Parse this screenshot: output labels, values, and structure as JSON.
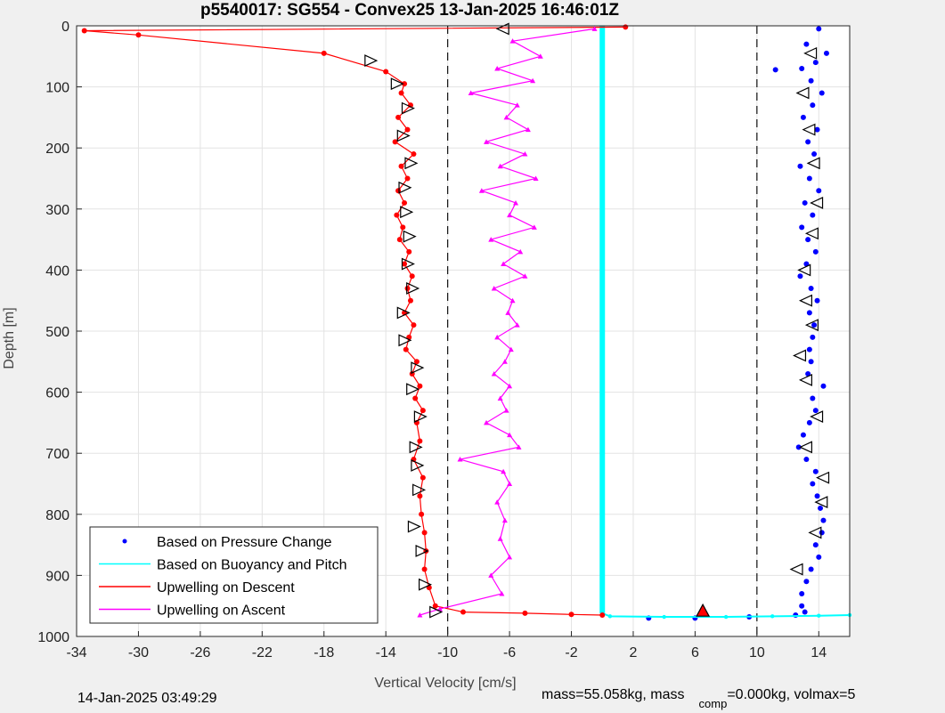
{
  "chart_data": {
    "type": "scatter",
    "title": "p5540017: SG554 - Convex25 13-Jan-2025 16:46:01Z",
    "xlabel": "Vertical Velocity [cm/s]",
    "ylabel": "Depth [m]",
    "xlim": [
      -34,
      16
    ],
    "ylim": [
      0,
      1000
    ],
    "y_reversed": true,
    "grid": true,
    "x_ticks": [
      "-34",
      "-30",
      "-26",
      "-22",
      "-18",
      "-14",
      "-10",
      "-6",
      "-2",
      "2",
      "6",
      "10",
      "14"
    ],
    "x_tick_values": [
      -34,
      -30,
      -26,
      -22,
      -18,
      -14,
      -10,
      -6,
      -2,
      2,
      6,
      10,
      14
    ],
    "y_ticks": [
      "0",
      "100",
      "200",
      "300",
      "400",
      "500",
      "600",
      "700",
      "800",
      "900",
      "1000"
    ],
    "y_tick_values": [
      0,
      100,
      200,
      300,
      400,
      500,
      600,
      700,
      800,
      900,
      1000
    ],
    "vlines": [
      -10,
      0,
      10
    ],
    "legend_position": "bottom-left",
    "legend": [
      {
        "label": "Based on Pressure Change",
        "color": "#0000ff",
        "style": "dot"
      },
      {
        "label": "Based on Buoyancy and Pitch",
        "color": "#00ffff",
        "style": "line"
      },
      {
        "label": "Upwelling on Descent",
        "color": "#ff0000",
        "style": "line"
      },
      {
        "label": "Upwelling on Ascent",
        "color": "#ff00ff",
        "style": "line"
      }
    ],
    "series": [
      {
        "name": "Based on Pressure Change",
        "color": "#0000ff",
        "x": [
          14,
          13.2,
          14.5,
          13.8,
          12.9,
          11.2,
          13.5,
          14.2,
          13.6,
          13.0,
          13.9,
          13.3,
          13.7,
          12.8,
          13.4,
          14.0,
          13.1,
          13.6,
          12.9,
          13.3,
          13.8,
          13.2,
          12.8,
          13.5,
          13.9,
          13.4,
          13.7,
          13.6,
          13.4,
          13.5,
          13.3,
          14.3,
          13.6,
          13.8,
          13.4,
          13.0,
          12.7,
          13.2,
          13.8,
          13.6,
          13.9,
          14.1,
          14.3,
          14.2,
          13.8,
          14.0,
          13.5,
          13.2,
          12.9,
          12.9,
          13.1,
          12.5,
          9.5,
          6.0,
          3.0
        ],
        "y": [
          5,
          30,
          45,
          60,
          70,
          72,
          90,
          110,
          130,
          150,
          170,
          190,
          210,
          230,
          250,
          270,
          290,
          310,
          330,
          350,
          370,
          390,
          410,
          430,
          450,
          470,
          490,
          510,
          530,
          550,
          570,
          590,
          610,
          630,
          650,
          670,
          690,
          710,
          730,
          750,
          770,
          790,
          810,
          830,
          850,
          870,
          890,
          910,
          930,
          950,
          960,
          965,
          968,
          970,
          970
        ]
      },
      {
        "name": "Based on Buoyancy and Pitch",
        "color": "#00ffff",
        "x": [
          0,
          0,
          0,
          0.5,
          4,
          8,
          11,
          14,
          16
        ],
        "y": [
          0,
          400,
          962,
          967,
          968,
          968,
          967,
          966,
          965
        ]
      },
      {
        "name": "Upwelling on Descent",
        "color": "#ff0000",
        "x": [
          1.5,
          -33.5,
          -30,
          -18,
          -14,
          -12.8,
          -13.0,
          -12.4,
          -13.2,
          -12.6,
          -13.4,
          -12.2,
          -13.0,
          -12.6,
          -13.2,
          -12.8,
          -13.3,
          -12.9,
          -13.1,
          -12.5,
          -12.8,
          -12.3,
          -12.6,
          -12.4,
          -12.8,
          -12.2,
          -12.5,
          -12.7,
          -12.0,
          -12.3,
          -11.8,
          -12.1,
          -11.6,
          -12.0,
          -11.8,
          -12.2,
          -11.6,
          -11.8,
          -11.7,
          -11.5,
          -11.4,
          -11.5,
          -11.2,
          -10.8,
          -9,
          -5,
          -2,
          0
        ],
        "y": [
          2,
          8,
          15,
          45,
          75,
          95,
          110,
          130,
          150,
          170,
          190,
          210,
          230,
          250,
          270,
          290,
          310,
          330,
          350,
          370,
          390,
          410,
          430,
          450,
          470,
          490,
          510,
          530,
          550,
          570,
          590,
          610,
          630,
          650,
          680,
          710,
          740,
          770,
          800,
          830,
          860,
          890,
          920,
          950,
          960,
          962,
          964,
          965
        ]
      },
      {
        "name": "Upwelling on Ascent",
        "color": "#ff00ff",
        "x": [
          -0.5,
          -5.8,
          -4.0,
          -6.8,
          -4.5,
          -8.5,
          -5.5,
          -6.2,
          -4.8,
          -7.5,
          -5.0,
          -6.6,
          -4.3,
          -7.8,
          -5.6,
          -6.0,
          -4.4,
          -7.2,
          -5.3,
          -6.4,
          -5.0,
          -7.0,
          -5.8,
          -6.1,
          -5.5,
          -6.8,
          -5.9,
          -6.3,
          -7.0,
          -6.0,
          -6.6,
          -6.2,
          -7.5,
          -6.0,
          -5.4,
          -9.2,
          -6.4,
          -6.0,
          -6.8,
          -6.3,
          -6.6,
          -6.0,
          -7.2,
          -6.5,
          -10.5,
          -11.8
        ],
        "y": [
          5,
          25,
          50,
          70,
          90,
          110,
          130,
          150,
          170,
          190,
          210,
          230,
          250,
          270,
          290,
          310,
          330,
          350,
          370,
          390,
          410,
          430,
          450,
          470,
          490,
          510,
          530,
          550,
          570,
          590,
          610,
          630,
          650,
          670,
          690,
          710,
          730,
          750,
          780,
          810,
          840,
          870,
          900,
          930,
          955,
          965
        ]
      }
    ],
    "markers": [
      {
        "type": "triangle-right",
        "x": [
          -15,
          -13.3,
          -12.6,
          -12.9,
          -12.4,
          -12.8,
          -12.7,
          -12.5,
          -12.6,
          -12.3,
          -12.9,
          -12.8,
          -12.0,
          -12.3,
          -11.8,
          -12.1,
          -12.0,
          -11.9,
          -12.2,
          -11.7,
          -11.5,
          -10.8
        ],
        "y": [
          57,
          95,
          135,
          180,
          225,
          265,
          305,
          345,
          390,
          430,
          470,
          515,
          560,
          595,
          640,
          690,
          720,
          760,
          820,
          860,
          915,
          960
        ],
        "color": "#000000"
      },
      {
        "type": "triangle-left",
        "x": [
          -6.4,
          13.5,
          13.0,
          13.4,
          13.7,
          13.9,
          13.6,
          13.1,
          13.2,
          13.6,
          12.8,
          13.2,
          13.9,
          13.2,
          14.3,
          14.2,
          13.8,
          12.6
        ],
        "y": [
          5,
          45,
          110,
          170,
          225,
          290,
          340,
          400,
          450,
          490,
          540,
          580,
          640,
          690,
          740,
          780,
          830,
          890
        ],
        "color": "#000000"
      },
      {
        "type": "triangle-up",
        "x": [
          6.5
        ],
        "y": [
          958
        ],
        "color": "#ff0000"
      }
    ]
  },
  "footer": {
    "timestamp": "14-Jan-2025 03:49:29",
    "mass_text": "mass=55.058kg, mass",
    "comp_sub": "comp",
    "comp_text": "=0.000kg, volmax=5"
  }
}
